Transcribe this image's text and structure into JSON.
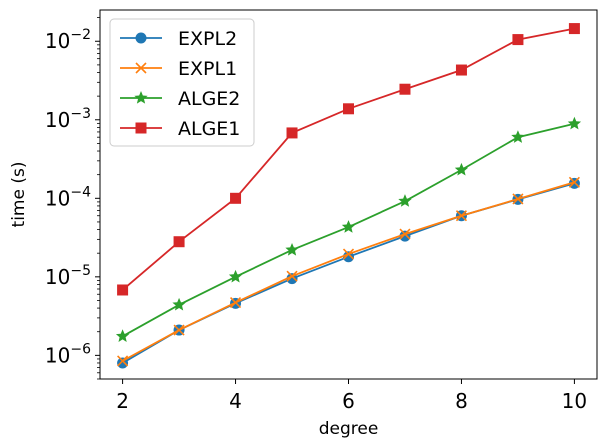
{
  "chart_data": {
    "type": "line",
    "title": "",
    "xlabel": "degree",
    "ylabel": "time (s)",
    "yscale": "log",
    "xlim": [
      1.6,
      10.4
    ],
    "ylim": [
      5e-07,
      0.025
    ],
    "xticks": [
      2,
      4,
      6,
      8,
      10
    ],
    "xtick_labels": [
      "2",
      "4",
      "6",
      "8",
      "10"
    ],
    "ytick_exponents": [
      -6,
      -5,
      -4,
      -3,
      -2
    ],
    "ytick_base": "10",
    "legend_position": "upper-left",
    "x": [
      2,
      3,
      4,
      5,
      6,
      7,
      8,
      9,
      10
    ],
    "series": [
      {
        "name": "EXPL2",
        "color": "#1f77b4",
        "marker": "circle",
        "values": [
          8e-07,
          2.1e-06,
          4.6e-06,
          9.5e-06,
          1.8e-05,
          3.3e-05,
          6e-05,
          9.7e-05,
          0.000155
        ]
      },
      {
        "name": "EXPL1",
        "color": "#ff7f0e",
        "marker": "x",
        "values": [
          8.5e-07,
          2.1e-06,
          4.7e-06,
          1.02e-05,
          1.95e-05,
          3.5e-05,
          6e-05,
          9.8e-05,
          0.00016
        ]
      },
      {
        "name": "ALGE2",
        "color": "#2ca02c",
        "marker": "star",
        "values": [
          1.75e-06,
          4.4e-06,
          1e-05,
          2.2e-05,
          4.3e-05,
          9.2e-05,
          0.00023,
          0.0006,
          0.00089
        ]
      },
      {
        "name": "ALGE1",
        "color": "#d62728",
        "marker": "square",
        "values": [
          6.8e-06,
          2.8e-05,
          0.0001,
          0.00068,
          0.00138,
          0.00245,
          0.0043,
          0.0105,
          0.0145
        ]
      }
    ]
  }
}
